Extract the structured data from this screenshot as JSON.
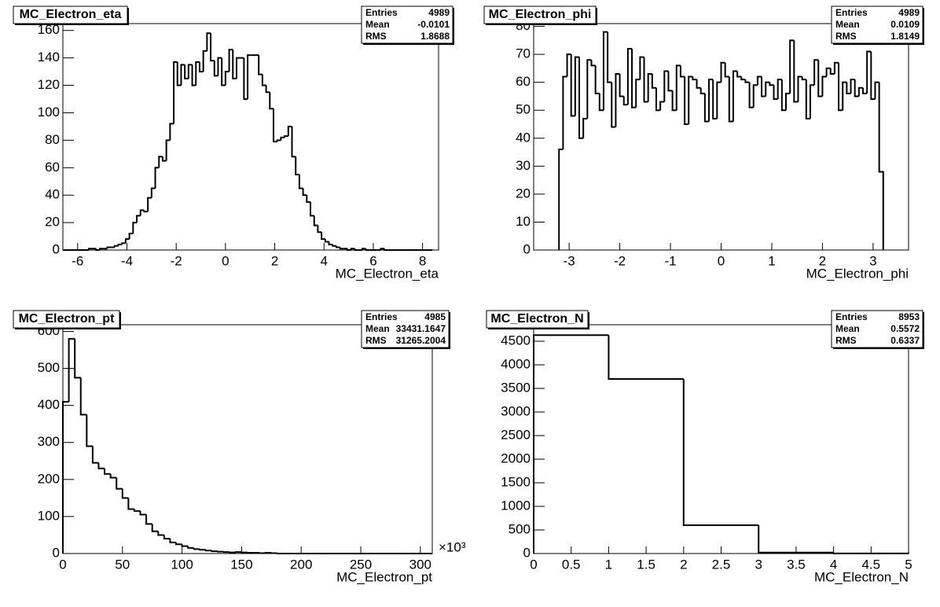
{
  "chart_data": [
    {
      "type": "histogram",
      "title": "MC_Electron_eta",
      "x_label": "MC_Electron_eta",
      "color": "#000000",
      "bins": [
        -6.6,
        -6.45,
        -6.3,
        -6.15,
        -6,
        -5.85,
        -5.7,
        -5.55,
        -5.4,
        -5.25,
        -5.1,
        -4.95,
        -4.8,
        -4.65,
        -4.5,
        -4.35,
        -4.2,
        -4.05,
        -3.9,
        -3.75,
        -3.6,
        -3.45,
        -3.3,
        -3.15,
        -3,
        -2.85,
        -2.7,
        -2.55,
        -2.4,
        -2.25,
        -2.1,
        -1.95,
        -1.8,
        -1.65,
        -1.5,
        -1.35,
        -1.2,
        -1.05,
        -0.9,
        -0.75,
        -0.6,
        -0.45,
        -0.3,
        -0.15,
        0,
        0.15,
        0.3,
        0.45,
        0.6,
        0.75,
        0.9,
        1.05,
        1.2,
        1.35,
        1.5,
        1.65,
        1.8,
        1.95,
        2.1,
        2.25,
        2.4,
        2.55,
        2.7,
        2.85,
        3,
        3.15,
        3.3,
        3.45,
        3.6,
        3.75,
        3.9,
        4.05,
        4.2,
        4.35,
        4.5,
        4.65,
        4.8,
        4.95,
        5.1,
        5.25,
        5.4,
        5.55,
        5.7,
        5.85,
        6,
        6.15,
        6.3,
        6.45,
        6.6,
        6.75,
        6.9,
        7.05,
        7.2,
        7.35,
        7.5,
        7.65,
        7.8,
        7.95,
        8.1,
        8.25,
        8.4
      ],
      "counts": [
        0,
        0,
        0,
        0,
        0,
        0,
        0,
        1,
        1,
        0,
        1,
        1,
        2,
        2,
        3,
        4,
        5,
        8,
        12,
        20,
        25,
        29,
        28,
        38,
        45,
        60,
        68,
        65,
        80,
        92,
        137,
        120,
        135,
        125,
        135,
        120,
        137,
        130,
        145,
        158,
        138,
        127,
        140,
        120,
        130,
        146,
        125,
        140,
        140,
        110,
        142,
        142,
        142,
        128,
        120,
        115,
        103,
        79,
        80,
        82,
        83,
        90,
        68,
        55,
        45,
        40,
        35,
        25,
        18,
        13,
        8,
        6,
        4,
        3,
        2,
        1,
        1,
        0,
        1,
        0,
        0,
        1,
        0,
        0,
        0,
        0,
        1,
        0,
        0,
        0,
        0,
        0,
        0,
        0,
        0,
        0,
        0,
        0,
        0,
        0
      ],
      "xlim": [
        -6.6,
        8.65
      ],
      "ylim": [
        0,
        165
      ],
      "xticks": [
        -6,
        -4,
        -2,
        0,
        2,
        4,
        6,
        8
      ],
      "yticks": [
        0,
        20,
        40,
        60,
        80,
        100,
        120,
        140,
        160
      ],
      "stats": [
        {
          "label": "Entries",
          "value": 4989
        },
        {
          "label": "Mean",
          "value": -0.0101
        },
        {
          "label": "RMS",
          "value": 1.8688
        }
      ]
    },
    {
      "type": "histogram",
      "title": "MC_Electron_phi",
      "x_label": "MC_Electron_phi",
      "color": "#000000",
      "bins": [
        -3.2,
        -3.12,
        -3.04,
        -2.96,
        -2.88,
        -2.8,
        -2.72,
        -2.64,
        -2.56,
        -2.48,
        -2.4,
        -2.32,
        -2.24,
        -2.16,
        -2.08,
        -2,
        -1.92,
        -1.84,
        -1.76,
        -1.68,
        -1.6,
        -1.52,
        -1.44,
        -1.36,
        -1.28,
        -1.2,
        -1.12,
        -1.04,
        -0.96,
        -0.88,
        -0.8,
        -0.72,
        -0.64,
        -0.56,
        -0.48,
        -0.4,
        -0.32,
        -0.24,
        -0.16,
        -0.08,
        0,
        0.08,
        0.16,
        0.24,
        0.32,
        0.4,
        0.48,
        0.56,
        0.64,
        0.72,
        0.8,
        0.88,
        0.96,
        1.04,
        1.12,
        1.2,
        1.28,
        1.36,
        1.44,
        1.52,
        1.6,
        1.68,
        1.76,
        1.84,
        1.92,
        2,
        2.08,
        2.16,
        2.24,
        2.32,
        2.4,
        2.48,
        2.56,
        2.64,
        2.72,
        2.8,
        2.88,
        2.96,
        3.04,
        3.12,
        3.2
      ],
      "counts": [
        36,
        62,
        70,
        48,
        69,
        40,
        47,
        68,
        66,
        56,
        50,
        78,
        60,
        44,
        63,
        55,
        52,
        72,
        51,
        61,
        69,
        53,
        63,
        58,
        50,
        53,
        64,
        57,
        50,
        66,
        62,
        45,
        62,
        61,
        58,
        56,
        46,
        61,
        47,
        60,
        67,
        62,
        46,
        64,
        62,
        61,
        60,
        51,
        59,
        62,
        55,
        60,
        59,
        54,
        61,
        50,
        56,
        75,
        53,
        62,
        61,
        47,
        59,
        68,
        55,
        62,
        65,
        63,
        67,
        50,
        60,
        56,
        61,
        55,
        58,
        56,
        71,
        54,
        60,
        28
      ],
      "xlim": [
        -3.7,
        3.7
      ],
      "ylim": [
        0,
        81
      ],
      "xticks": [
        -3,
        -2,
        -1,
        0,
        1,
        2,
        3
      ],
      "yticks": [
        0,
        10,
        20,
        30,
        40,
        50,
        60,
        70,
        80
      ],
      "stats": [
        {
          "label": "Entries",
          "value": 4989
        },
        {
          "label": "Mean",
          "value": 0.0109
        },
        {
          "label": "RMS",
          "value": 1.8149
        }
      ]
    },
    {
      "type": "histogram",
      "title": "MC_Electron_pt",
      "x_label": "MC_Electron_pt",
      "x_multiplier": "×10³",
      "color": "#000000",
      "bins": [
        0,
        5,
        10,
        15,
        20,
        25,
        30,
        35,
        40,
        45,
        50,
        55,
        60,
        65,
        70,
        75,
        80,
        85,
        90,
        95,
        100,
        105,
        110,
        115,
        120,
        125,
        130,
        135,
        140,
        145,
        150,
        155,
        160,
        165,
        170,
        175,
        180,
        185,
        190,
        195,
        200,
        205,
        210,
        215,
        220,
        225,
        230,
        235,
        240,
        245,
        250,
        255,
        260,
        265,
        270,
        275,
        280,
        285,
        290,
        295,
        300,
        305,
        310
      ],
      "counts": [
        410,
        580,
        475,
        375,
        290,
        245,
        230,
        215,
        205,
        175,
        150,
        120,
        115,
        105,
        80,
        60,
        50,
        40,
        30,
        25,
        20,
        15,
        12,
        10,
        8,
        6,
        5,
        4,
        3,
        4,
        3,
        2,
        2,
        1,
        2,
        1,
        0,
        0,
        0,
        0,
        0,
        0,
        0,
        0,
        0,
        0,
        0,
        0,
        0,
        0,
        0,
        0,
        0,
        0,
        0,
        0,
        0,
        0,
        0,
        0,
        0,
        0
      ],
      "xlim": [
        0,
        310
      ],
      "ylim": [
        0,
        618
      ],
      "xticks": [
        0,
        50,
        100,
        150,
        200,
        250,
        300
      ],
      "yticks": [
        0,
        100,
        200,
        300,
        400,
        500,
        600
      ],
      "stats": [
        {
          "label": "Entries",
          "value": 4985
        },
        {
          "label": "Mean",
          "value": 33431.1647
        },
        {
          "label": "RMS",
          "value": 31265.2004
        }
      ]
    },
    {
      "type": "histogram",
      "title": "MC_Electron_N",
      "x_label": "MC_Electron_N",
      "color": "#000000",
      "bins": [
        0,
        1,
        2,
        3,
        4,
        5
      ],
      "counts": [
        4630,
        3700,
        600,
        20,
        3
      ],
      "xlim": [
        0,
        5
      ],
      "ylim": [
        0,
        4850
      ],
      "xticks": [
        0,
        0.5,
        1,
        1.5,
        2,
        2.5,
        3,
        3.5,
        4,
        4.5,
        5
      ],
      "yticks": [
        0,
        500,
        1000,
        1500,
        2000,
        2500,
        3000,
        3500,
        4000,
        4500
      ],
      "stats": [
        {
          "label": "Entries",
          "value": 8953
        },
        {
          "label": "Mean",
          "value": 0.5572
        },
        {
          "label": "RMS",
          "value": 0.6337
        }
      ]
    }
  ]
}
